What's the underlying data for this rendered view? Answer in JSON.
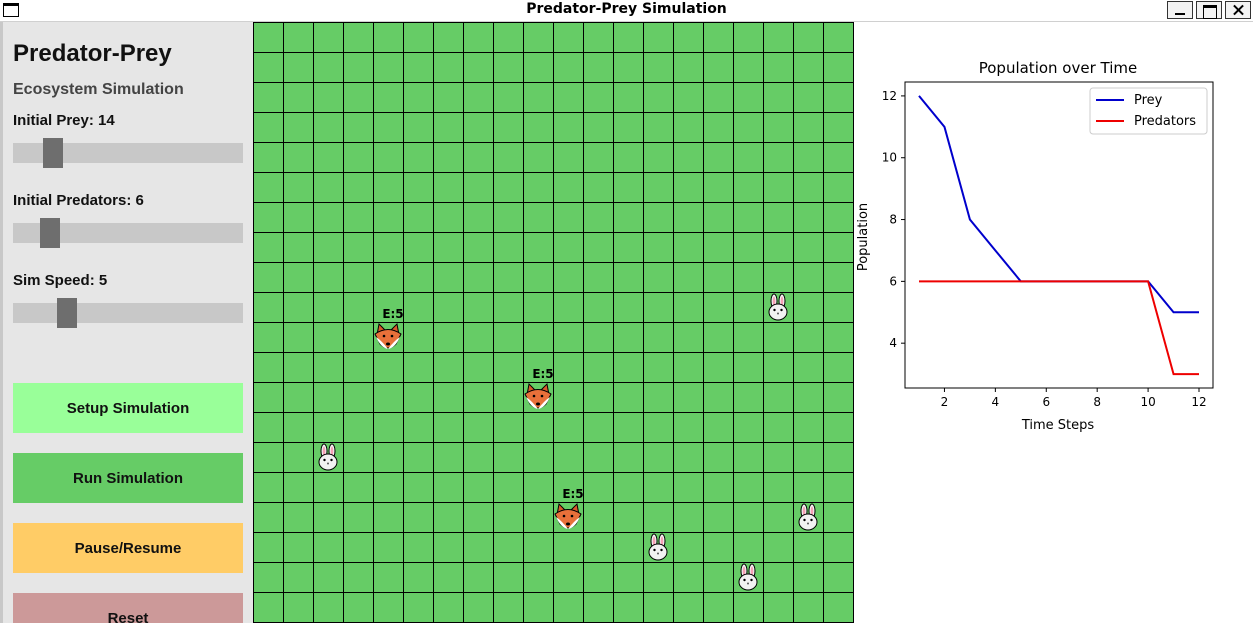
{
  "window": {
    "title": "Predator-Prey Simulation"
  },
  "panel": {
    "title": "Predator-Prey",
    "subtitle": "Ecosystem Simulation",
    "sliders": {
      "prey": {
        "label": "Initial Prey: 14",
        "value": 14
      },
      "predators": {
        "label": "Initial Predators: 6",
        "value": 6
      },
      "speed": {
        "label": "Sim Speed: 5",
        "value": 5
      }
    },
    "buttons": {
      "setup": {
        "label": "Setup Simulation",
        "color": "#99ff99"
      },
      "run": {
        "label": "Run Simulation",
        "color": "#66cc66"
      },
      "pause": {
        "label": "Pause/Resume",
        "color": "#ffcc66"
      },
      "reset": {
        "label": "Reset",
        "color": "#cc9999"
      }
    }
  },
  "grid": {
    "cols": 20,
    "rows": 20,
    "cell_color": "#66cc66",
    "line_color": "#000000",
    "predators": [
      {
        "col": 4,
        "row": 10,
        "energy_label": "E:5"
      },
      {
        "col": 9,
        "row": 12,
        "energy_label": "E:5"
      },
      {
        "col": 10,
        "row": 16,
        "energy_label": "E:5"
      }
    ],
    "prey": [
      {
        "col": 17,
        "row": 9
      },
      {
        "col": 2,
        "row": 14
      },
      {
        "col": 18,
        "row": 16
      },
      {
        "col": 13,
        "row": 17
      },
      {
        "col": 16,
        "row": 18
      }
    ]
  },
  "chart_data": {
    "type": "line",
    "title": "Population over Time",
    "xlabel": "Time Steps",
    "ylabel": "Population",
    "x": [
      1,
      2,
      3,
      4,
      5,
      6,
      7,
      8,
      9,
      10,
      11,
      12
    ],
    "series": [
      {
        "name": "Prey",
        "color": "#0000cc",
        "values": [
          12,
          11,
          8,
          7,
          6,
          6,
          6,
          6,
          6,
          6,
          5,
          5
        ]
      },
      {
        "name": "Predators",
        "color": "#ee0000",
        "values": [
          6,
          6,
          6,
          6,
          6,
          6,
          6,
          6,
          6,
          6,
          3,
          3
        ]
      }
    ],
    "xlim": [
      0.45,
      12.55
    ],
    "ylim": [
      2.55,
      12.45
    ],
    "xticks": [
      2,
      4,
      6,
      8,
      10,
      12
    ],
    "yticks": [
      4,
      6,
      8,
      10,
      12
    ],
    "legend": "top-right",
    "grid": false
  }
}
